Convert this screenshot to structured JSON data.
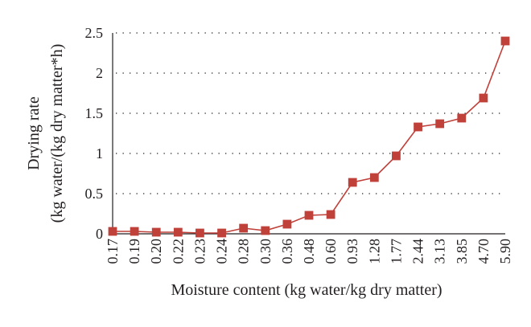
{
  "chart_data": {
    "type": "line",
    "xlabel": "Moisture content (kg water/kg dry matter)",
    "ylabel_lines": [
      "Drying rate",
      "(kg water/(kg dry matter*h)"
    ],
    "categories": [
      "0.17",
      "0.19",
      "0.20",
      "0.22",
      "0.23",
      "0.24",
      "0.28",
      "0.30",
      "0.36",
      "0.48",
      "0.60",
      "0.93",
      "1.28",
      "1.77",
      "2.44",
      "3.13",
      "3.85",
      "4.70",
      "5.90"
    ],
    "series": [
      {
        "values": [
          0.03,
          0.03,
          0.02,
          0.02,
          0.01,
          0.01,
          0.07,
          0.04,
          0.12,
          0.23,
          0.24,
          0.64,
          0.7,
          0.97,
          1.33,
          1.37,
          1.44,
          1.69,
          2.4
        ],
        "color": "#c0403a",
        "marker": "square"
      }
    ],
    "yticks": [
      "0",
      "0.5",
      "1",
      "1.5",
      "2",
      "2.5"
    ],
    "ylim": [
      0,
      2.5
    ],
    "grid": true,
    "grid_style": "dotted horizontal"
  }
}
